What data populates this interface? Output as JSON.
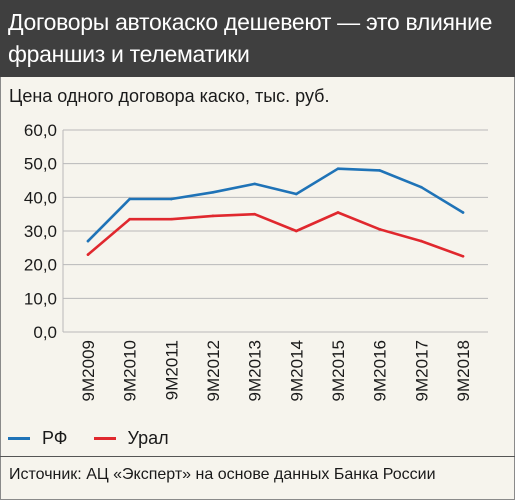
{
  "header": {
    "title": "Договоры автокаско дешевеют — это влияние франшиз и телематики"
  },
  "subtitle": "Цена одного договора каско, тыс. руб.",
  "chart_data": {
    "type": "line",
    "title": "Договоры автокаско дешевеют — это влияние франшиз и телематики",
    "subtitle": "Цена одного договора каско, тыс. руб.",
    "xlabel": "",
    "ylabel": "",
    "categories": [
      "9М2009",
      "9М2010",
      "9М2011",
      "9М2012",
      "9М2013",
      "9М2014",
      "9М2015",
      "9М2016",
      "9М2017",
      "9М2018"
    ],
    "ylim": [
      0,
      60
    ],
    "yticks": [
      "0,0",
      "10,0",
      "20,0",
      "30,0",
      "40,0",
      "50,0",
      "60,0"
    ],
    "grid": true,
    "legend_position": "bottom-left",
    "series": [
      {
        "name": "РФ",
        "color": "#1f73b7",
        "values": [
          27,
          39.5,
          39.5,
          41.5,
          44,
          41,
          48.5,
          48,
          43,
          35.5
        ]
      },
      {
        "name": "Урал",
        "color": "#e0282e",
        "values": [
          23,
          33.5,
          33.5,
          34.5,
          35,
          30,
          35.5,
          30.5,
          27,
          22.5
        ]
      }
    ]
  },
  "source": "Источник: АЦ «Эксперт» на основе данных Банка России"
}
